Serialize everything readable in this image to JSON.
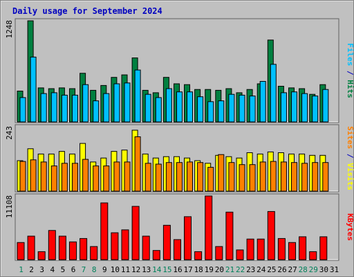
{
  "chart_data": {
    "type": "bar",
    "title": "Daily usage for September 2024",
    "categories": [
      "1",
      "2",
      "3",
      "4",
      "5",
      "6",
      "7",
      "8",
      "9",
      "10",
      "11",
      "12",
      "13",
      "14",
      "15",
      "16",
      "17",
      "18",
      "19",
      "20",
      "21",
      "22",
      "23",
      "24",
      "25",
      "26",
      "27",
      "28",
      "29",
      "30",
      "31"
    ],
    "weekend_days": [
      1,
      7,
      8,
      14,
      15,
      21,
      22,
      28,
      29
    ],
    "separator": " / ",
    "panels": [
      {
        "id": "hits-files",
        "ymax_label": "1248",
        "ylim": [
          0,
          1248
        ],
        "series": [
          {
            "name": "Hits",
            "color": "#008040",
            "values": [
              380,
              1248,
              420,
              410,
              420,
              410,
              600,
              390,
              450,
              550,
              580,
              790,
              390,
              360,
              550,
              470,
              460,
              400,
              400,
              390,
              410,
              360,
              400,
              470,
              1010,
              440,
              420,
              410,
              340,
              460,
              0
            ]
          },
          {
            "name": "Files",
            "color": "#00c0ff",
            "values": [
              300,
              800,
              350,
              360,
              330,
              330,
              460,
              260,
              350,
              470,
              480,
              640,
              340,
              300,
              410,
              370,
              370,
              310,
              250,
              260,
              340,
              330,
              320,
              500,
              710,
              360,
              370,
              350,
              320,
              400,
              0
            ]
          }
        ]
      },
      {
        "id": "visits-sites",
        "ymax_label": "243",
        "ylim": [
          0,
          243
        ],
        "series": [
          {
            "name": "Visits",
            "color": "#ffff00",
            "values": [
              115,
              160,
              140,
              140,
              150,
              140,
              180,
              110,
              125,
              150,
              155,
              230,
              140,
              125,
              130,
              130,
              125,
              115,
              105,
              135,
              130,
              125,
              145,
              140,
              148,
              145,
              140,
              140,
              135,
              135,
              0
            ]
          },
          {
            "name": "Sites",
            "color": "#ff8000",
            "values": [
              112,
              118,
              110,
              95,
              105,
              105,
              120,
              95,
              95,
              110,
              110,
              205,
              105,
              102,
              108,
              108,
              110,
              108,
              90,
              138,
              108,
              100,
              100,
              110,
              112,
              110,
              108,
              105,
              108,
              108,
              0
            ]
          }
        ]
      },
      {
        "id": "kbytes",
        "ymax_label": "11108",
        "ylim": [
          0,
          11108
        ],
        "series": [
          {
            "name": "KBytes",
            "color": "#ff0000",
            "values": [
              3000,
              4100,
              1400,
              5100,
              4100,
              3100,
              3700,
              2300,
              9900,
              4700,
              5200,
              9300,
              4100,
              1600,
              6000,
              3500,
              7500,
              1400,
              11108,
              2300,
              8300,
              1700,
              3600,
              3600,
              8400,
              3700,
              3000,
              4000,
              1400,
              4000,
              0
            ]
          }
        ]
      }
    ]
  }
}
